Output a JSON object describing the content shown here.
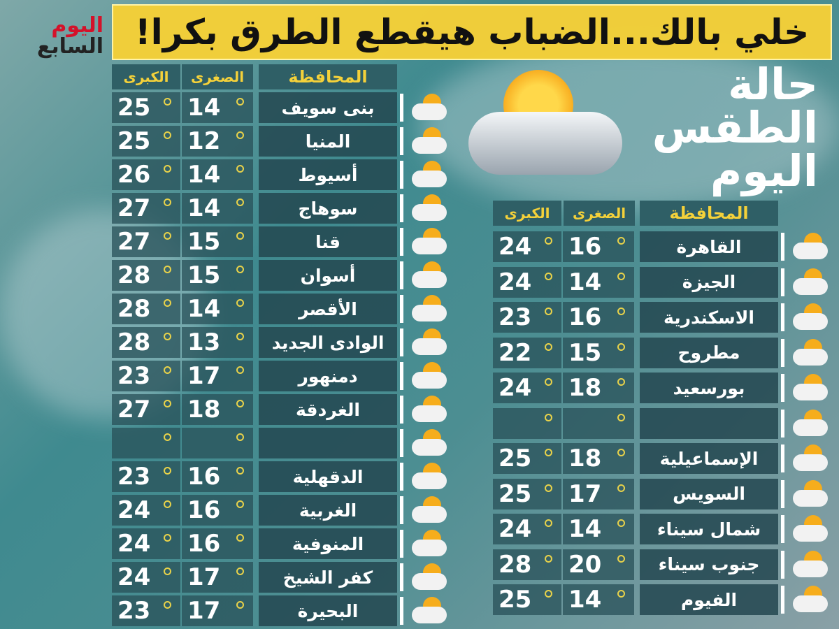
{
  "logo": {
    "line1": "اليوم",
    "line2": "السابع"
  },
  "title": {
    "line1": "حالة",
    "line2": "الطقس",
    "line3": "اليوم"
  },
  "headers": {
    "max": "الكبرى",
    "min": "الصغرى",
    "governorate": "المحافظة"
  },
  "weather_icon": "partly-cloudy-icon",
  "left_table": [
    {
      "name": "بنى سويف",
      "min": "14",
      "max": "25"
    },
    {
      "name": "المنيا",
      "min": "12",
      "max": "25"
    },
    {
      "name": "أسيوط",
      "min": "14",
      "max": "26"
    },
    {
      "name": "سوهاج",
      "min": "14",
      "max": "27"
    },
    {
      "name": "قنا",
      "min": "15",
      "max": "27"
    },
    {
      "name": "أسوان",
      "min": "15",
      "max": "28"
    },
    {
      "name": "الأقصر",
      "min": "14",
      "max": "28"
    },
    {
      "name": "الوادى الجديد",
      "min": "13",
      "max": "28"
    },
    {
      "name": "دمنهور",
      "min": "17",
      "max": "23"
    },
    {
      "name": "الغردقة",
      "min": "18",
      "max": "27"
    },
    {
      "name": "",
      "min": "",
      "max": ""
    },
    {
      "name": "الدقهلية",
      "min": "16",
      "max": "23"
    },
    {
      "name": "الغربية",
      "min": "16",
      "max": "24"
    },
    {
      "name": "المنوفية",
      "min": "16",
      "max": "24"
    },
    {
      "name": "كفر الشيخ",
      "min": "17",
      "max": "24"
    },
    {
      "name": "البحيرة",
      "min": "17",
      "max": "23"
    }
  ],
  "right_table": [
    {
      "name": "القاهرة",
      "min": "16",
      "max": "24"
    },
    {
      "name": "الجيزة",
      "min": "14",
      "max": "24"
    },
    {
      "name": "الاسكندرية",
      "min": "16",
      "max": "23"
    },
    {
      "name": "مطروح",
      "min": "15",
      "max": "22"
    },
    {
      "name": "بورسعيد",
      "min": "18",
      "max": "24"
    },
    {
      "name": "",
      "min": "",
      "max": ""
    },
    {
      "name": "الإسماعيلية",
      "min": "18",
      "max": "25"
    },
    {
      "name": "السويس",
      "min": "17",
      "max": "25"
    },
    {
      "name": "شمال سيناء",
      "min": "14",
      "max": "24"
    },
    {
      "name": "جنوب سيناء",
      "min": "20",
      "max": "28"
    },
    {
      "name": "الفيوم",
      "min": "14",
      "max": "25"
    }
  ],
  "banner": {
    "headline": "خلي بالك...الضباب هيقطع الطرق بكرا!"
  },
  "colors": {
    "banner": "#f5d037",
    "header_text": "#f4d13a",
    "logo_red": "#d4122a"
  }
}
